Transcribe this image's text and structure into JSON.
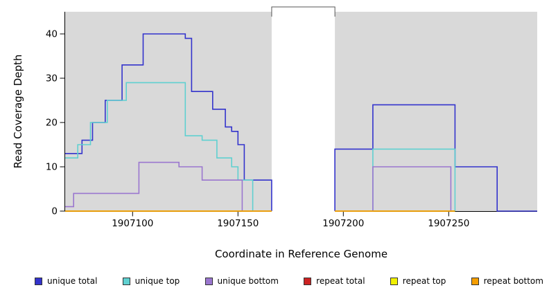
{
  "chart_data": {
    "type": "line",
    "subtype": "step",
    "title": "",
    "xlabel": "Coordinate in Reference Genome",
    "ylabel": "Read Coverage Depth",
    "xlim": [
      1907068,
      1907292
    ],
    "ylim": [
      0,
      45
    ],
    "xticks": [
      1907100,
      1907150,
      1907200,
      1907250
    ],
    "yticks": [
      0,
      10,
      20,
      30,
      40
    ],
    "grid": false,
    "panel_bg": "#d9d9d9",
    "gap_region": {
      "from": 1907166,
      "to": 1907196
    },
    "legend_position": "bottom",
    "series": [
      {
        "name": "unique total",
        "color": "#3333cc",
        "segments": [
          {
            "end": 1907166,
            "points": [
              [
                1907068,
                13
              ],
              [
                1907076,
                16
              ],
              [
                1907081,
                20
              ],
              [
                1907087,
                25
              ],
              [
                1907095,
                33
              ],
              [
                1907105,
                40
              ],
              [
                1907125,
                39
              ],
              [
                1907128,
                27
              ],
              [
                1907138,
                23
              ],
              [
                1907144,
                19
              ],
              [
                1907147,
                18
              ],
              [
                1907150,
                15
              ],
              [
                1907153,
                7
              ],
              [
                1907166,
                0
              ]
            ]
          },
          {
            "end": 1907292,
            "points": [
              [
                1907196,
                0
              ],
              [
                1907196,
                14
              ],
              [
                1907214,
                24
              ],
              [
                1907253,
                10
              ],
              [
                1907273,
                0
              ]
            ]
          }
        ]
      },
      {
        "name": "unique top",
        "color": "#5fd0d0",
        "segments": [
          {
            "end": 1907166,
            "points": [
              [
                1907068,
                12
              ],
              [
                1907074,
                15
              ],
              [
                1907080,
                20
              ],
              [
                1907088,
                25
              ],
              [
                1907097,
                29
              ],
              [
                1907125,
                17
              ],
              [
                1907133,
                16
              ],
              [
                1907140,
                12
              ],
              [
                1907147,
                10
              ],
              [
                1907150,
                7
              ],
              [
                1907157,
                0
              ]
            ]
          },
          {
            "end": 1907253,
            "points": [
              [
                1907196,
                0
              ],
              [
                1907214,
                14
              ],
              [
                1907253,
                0
              ]
            ]
          }
        ]
      },
      {
        "name": "unique bottom",
        "color": "#9a76cf",
        "segments": [
          {
            "end": 1907166,
            "points": [
              [
                1907068,
                1
              ],
              [
                1907072,
                4
              ],
              [
                1907103,
                11
              ],
              [
                1907122,
                10
              ],
              [
                1907133,
                7
              ],
              [
                1907152,
                0
              ]
            ]
          },
          {
            "end": 1907251,
            "points": [
              [
                1907196,
                0
              ],
              [
                1907214,
                10
              ],
              [
                1907251,
                0
              ]
            ]
          }
        ]
      },
      {
        "name": "repeat total",
        "color": "#cc2222",
        "segments": [
          {
            "end": 1907166,
            "points": [
              [
                1907068,
                0
              ]
            ]
          },
          {
            "end": 1907253,
            "points": [
              [
                1907196,
                0
              ]
            ]
          }
        ]
      },
      {
        "name": "repeat top",
        "color": "#f0f000",
        "segments": [
          {
            "end": 1907166,
            "points": [
              [
                1907068,
                0
              ]
            ]
          },
          {
            "end": 1907253,
            "points": [
              [
                1907196,
                0
              ]
            ]
          }
        ]
      },
      {
        "name": "repeat bottom",
        "color": "#f59e00",
        "segments": [
          {
            "end": 1907166,
            "points": [
              [
                1907068,
                0
              ]
            ]
          },
          {
            "end": 1907253,
            "points": [
              [
                1907196,
                0
              ]
            ]
          }
        ]
      }
    ]
  }
}
